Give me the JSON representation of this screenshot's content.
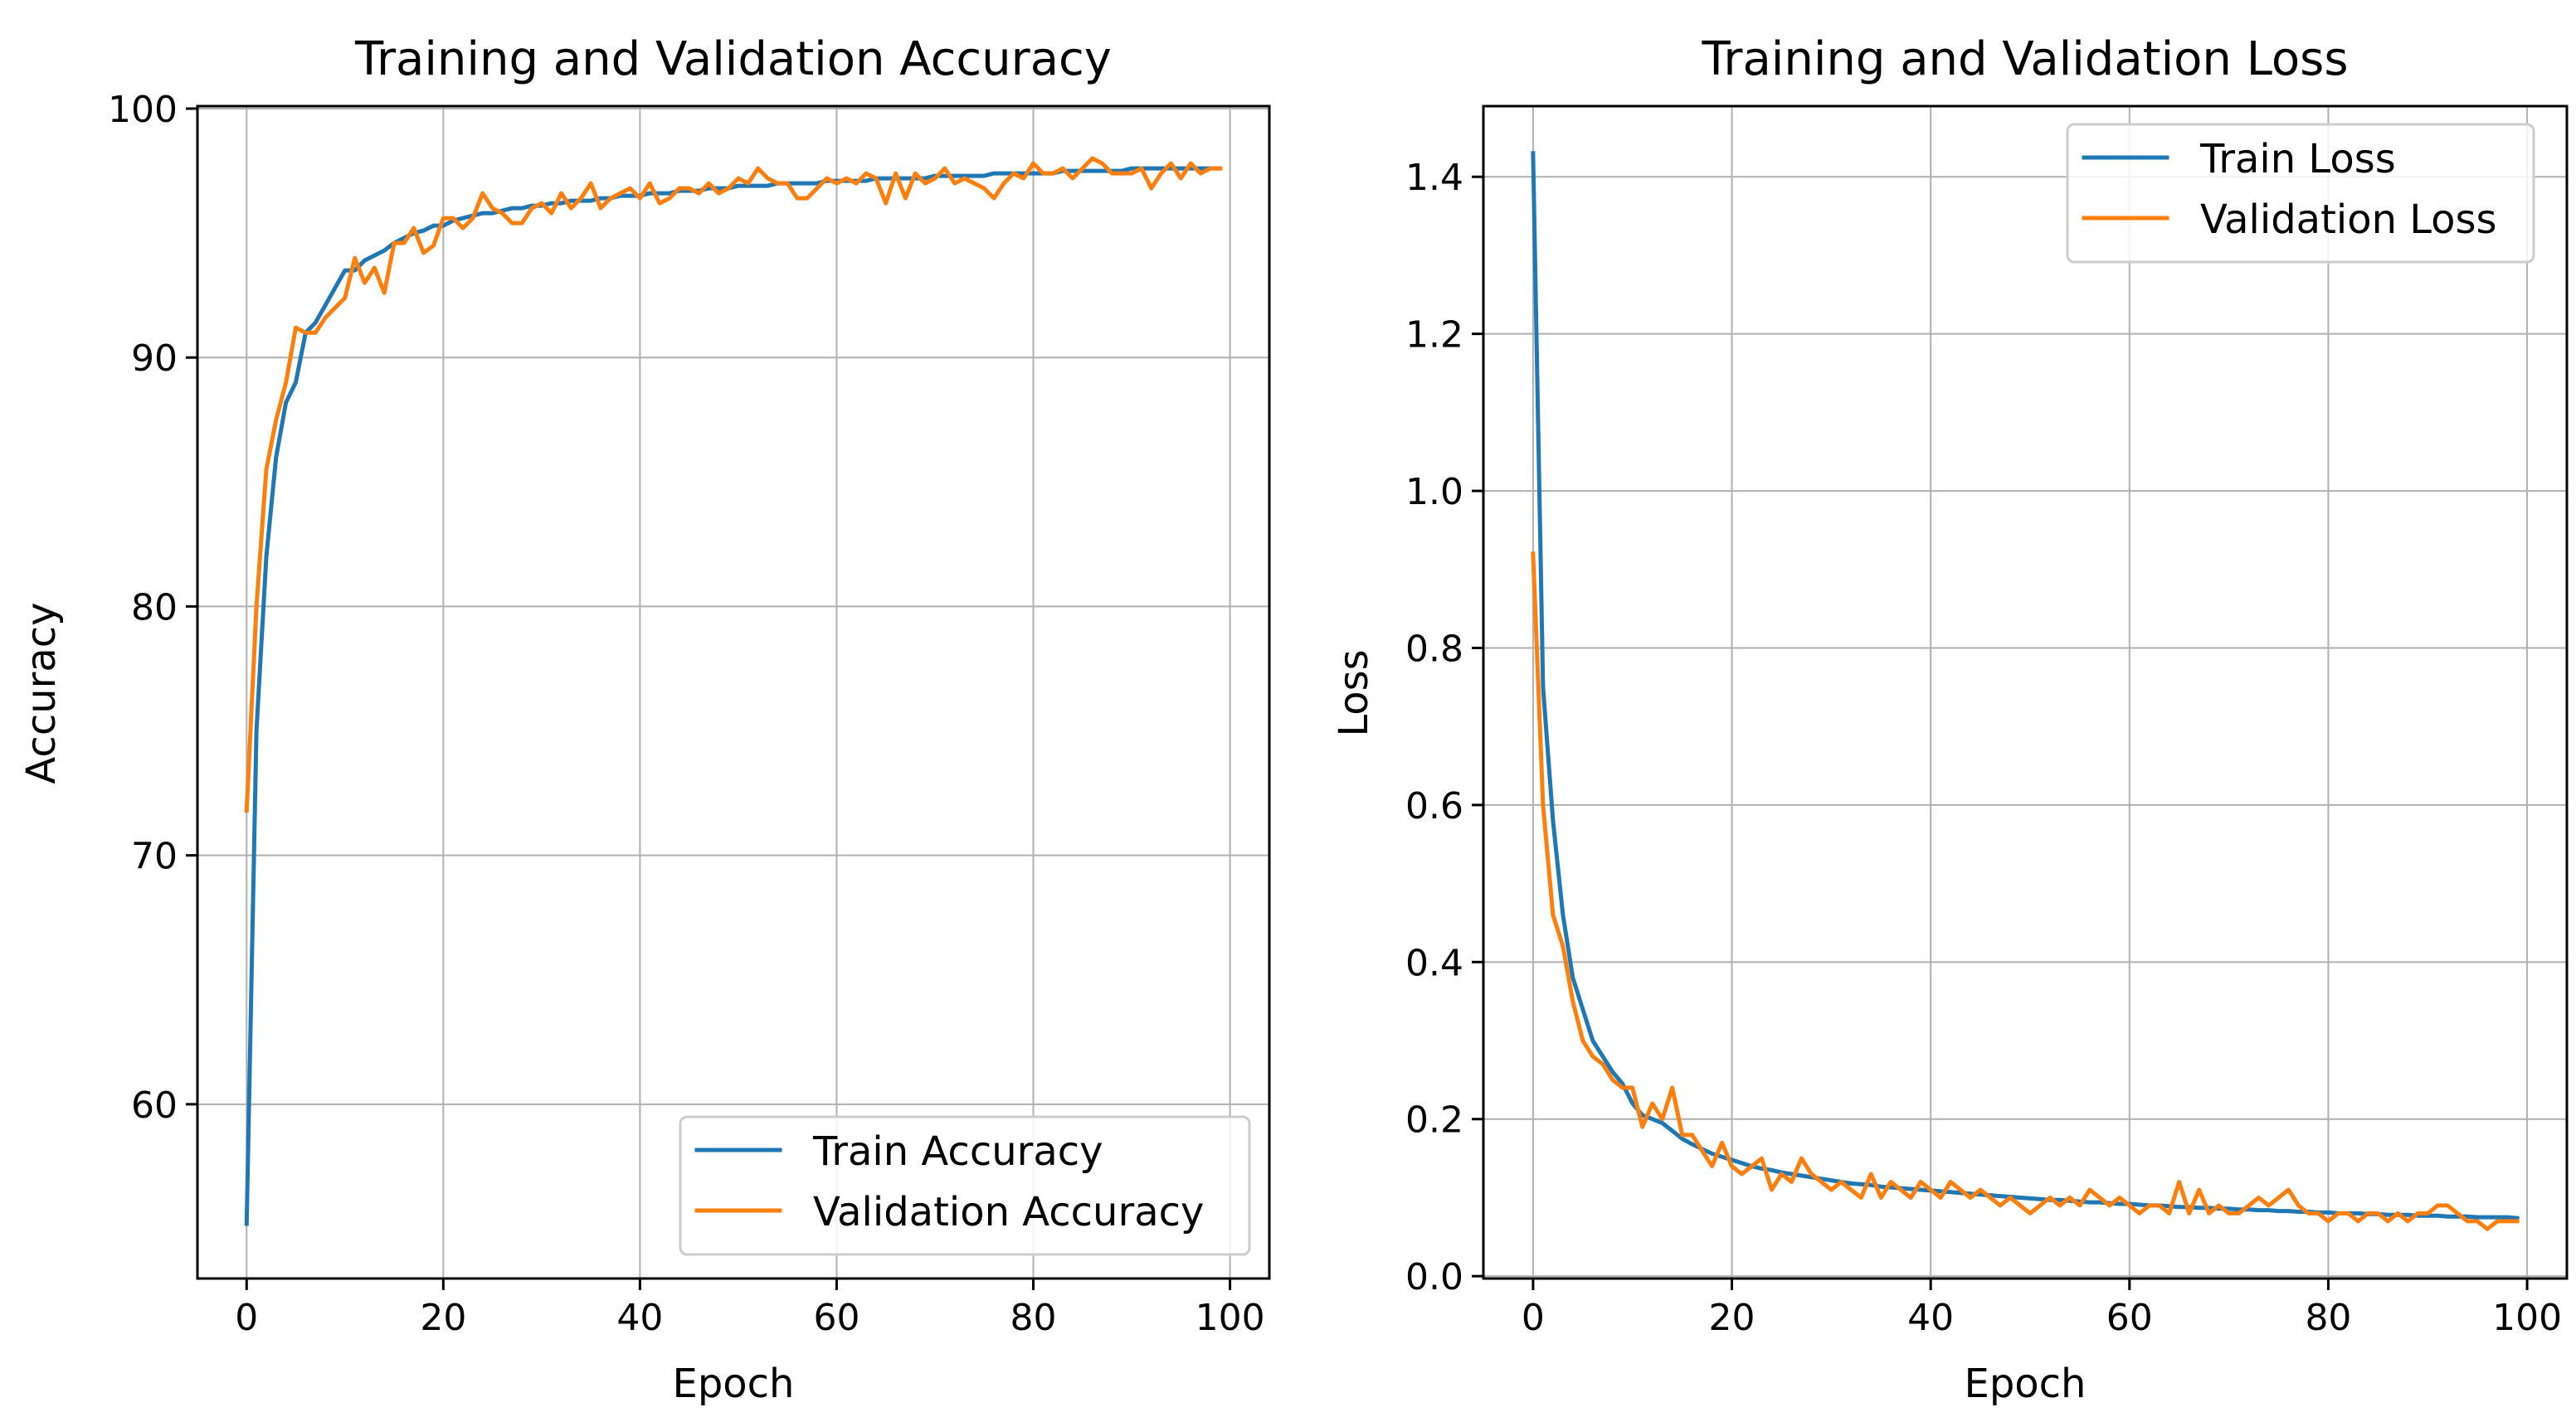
{
  "chart_data": [
    {
      "type": "line",
      "title": "Training and Validation Accuracy",
      "xlabel": "Epoch",
      "ylabel": "Accuracy",
      "xlim": [
        -5,
        104
      ],
      "ylim": [
        53,
        100.1
      ],
      "xticks": [
        0,
        20,
        40,
        60,
        80,
        100
      ],
      "yticks": [
        60,
        70,
        80,
        90,
        100
      ],
      "grid": true,
      "legend_position": "lower-right",
      "series": [
        {
          "name": "Train Accuracy",
          "color": "#1f77b4",
          "x": [
            0,
            1,
            2,
            3,
            4,
            5,
            6,
            7,
            8,
            9,
            10,
            11,
            12,
            13,
            14,
            15,
            16,
            17,
            18,
            19,
            20,
            21,
            22,
            23,
            24,
            25,
            26,
            27,
            28,
            29,
            30,
            31,
            32,
            33,
            34,
            35,
            36,
            37,
            38,
            39,
            40,
            41,
            42,
            43,
            44,
            45,
            46,
            47,
            48,
            49,
            50,
            51,
            52,
            53,
            54,
            55,
            56,
            57,
            58,
            59,
            60,
            61,
            62,
            63,
            64,
            65,
            66,
            67,
            68,
            69,
            70,
            71,
            72,
            73,
            74,
            75,
            76,
            77,
            78,
            79,
            80,
            81,
            82,
            83,
            84,
            85,
            86,
            87,
            88,
            89,
            90,
            91,
            92,
            93,
            94,
            95,
            96,
            97,
            98,
            99
          ],
          "values": [
            55.2,
            75.0,
            82.0,
            86.0,
            88.2,
            89.0,
            91.0,
            91.4,
            92.1,
            92.8,
            93.5,
            93.5,
            93.9,
            94.1,
            94.3,
            94.6,
            94.8,
            95.0,
            95.1,
            95.3,
            95.3,
            95.5,
            95.6,
            95.7,
            95.8,
            95.8,
            95.9,
            96.0,
            96.0,
            96.1,
            96.1,
            96.2,
            96.2,
            96.3,
            96.3,
            96.3,
            96.4,
            96.4,
            96.5,
            96.5,
            96.5,
            96.6,
            96.6,
            96.6,
            96.7,
            96.7,
            96.7,
            96.8,
            96.8,
            96.8,
            96.9,
            96.9,
            96.9,
            96.9,
            97.0,
            97.0,
            97.0,
            97.0,
            97.0,
            97.1,
            97.1,
            97.1,
            97.1,
            97.1,
            97.2,
            97.2,
            97.2,
            97.2,
            97.2,
            97.2,
            97.3,
            97.3,
            97.3,
            97.3,
            97.3,
            97.3,
            97.4,
            97.4,
            97.4,
            97.4,
            97.4,
            97.4,
            97.4,
            97.5,
            97.5,
            97.5,
            97.5,
            97.5,
            97.5,
            97.5,
            97.6,
            97.6,
            97.6,
            97.6,
            97.6,
            97.6,
            97.6,
            97.6,
            97.6,
            97.6
          ]
        },
        {
          "name": "Validation Accuracy",
          "color": "#ff7f0e",
          "x": [
            0,
            1,
            2,
            3,
            4,
            5,
            6,
            7,
            8,
            9,
            10,
            11,
            12,
            13,
            14,
            15,
            16,
            17,
            18,
            19,
            20,
            21,
            22,
            23,
            24,
            25,
            26,
            27,
            28,
            29,
            30,
            31,
            32,
            33,
            34,
            35,
            36,
            37,
            38,
            39,
            40,
            41,
            42,
            43,
            44,
            45,
            46,
            47,
            48,
            49,
            50,
            51,
            52,
            53,
            54,
            55,
            56,
            57,
            58,
            59,
            60,
            61,
            62,
            63,
            64,
            65,
            66,
            67,
            68,
            69,
            70,
            71,
            72,
            73,
            74,
            75,
            76,
            77,
            78,
            79,
            80,
            81,
            82,
            83,
            84,
            85,
            86,
            87,
            88,
            89,
            90,
            91,
            92,
            93,
            94,
            95,
            96,
            97,
            98,
            99
          ],
          "values": [
            71.8,
            80.0,
            85.5,
            87.5,
            89.0,
            91.2,
            91.0,
            91.0,
            91.6,
            92.0,
            92.4,
            94.0,
            93.0,
            93.6,
            92.6,
            94.6,
            94.6,
            95.2,
            94.2,
            94.5,
            95.6,
            95.6,
            95.2,
            95.6,
            96.6,
            96.0,
            95.8,
            95.4,
            95.4,
            96.0,
            96.2,
            95.8,
            96.6,
            96.0,
            96.4,
            97.0,
            96.0,
            96.4,
            96.6,
            96.8,
            96.4,
            97.0,
            96.2,
            96.4,
            96.8,
            96.8,
            96.6,
            97.0,
            96.6,
            96.8,
            97.2,
            97.0,
            97.6,
            97.2,
            97.0,
            97.0,
            96.4,
            96.4,
            96.8,
            97.2,
            97.0,
            97.2,
            97.0,
            97.4,
            97.2,
            96.2,
            97.4,
            96.4,
            97.4,
            97.0,
            97.2,
            97.6,
            97.0,
            97.2,
            97.0,
            96.8,
            96.4,
            97.0,
            97.4,
            97.2,
            97.8,
            97.4,
            97.4,
            97.6,
            97.2,
            97.6,
            98.0,
            97.8,
            97.4,
            97.4,
            97.4,
            97.6,
            96.8,
            97.4,
            97.8,
            97.2,
            97.8,
            97.4,
            97.6,
            97.6
          ]
        }
      ]
    },
    {
      "type": "line",
      "title": "Training and Validation Loss",
      "xlabel": "Epoch",
      "ylabel": "Loss",
      "xlim": [
        -5,
        104
      ],
      "ylim": [
        -0.003,
        1.49
      ],
      "xticks": [
        0,
        20,
        40,
        60,
        80,
        100
      ],
      "yticks": [
        0.0,
        0.2,
        0.4,
        0.6,
        0.8,
        1.0,
        1.2,
        1.4
      ],
      "ytick_labels": [
        "0.0",
        "0.2",
        "0.4",
        "0.6",
        "0.8",
        "1.0",
        "1.2",
        "1.4"
      ],
      "grid": true,
      "legend_position": "upper-right",
      "series": [
        {
          "name": "Train Loss",
          "color": "#1f77b4",
          "x": [
            0,
            1,
            2,
            3,
            4,
            5,
            6,
            7,
            8,
            9,
            10,
            11,
            12,
            13,
            14,
            15,
            16,
            17,
            18,
            19,
            20,
            21,
            22,
            23,
            24,
            25,
            26,
            27,
            28,
            29,
            30,
            31,
            32,
            33,
            34,
            35,
            36,
            37,
            38,
            39,
            40,
            41,
            42,
            43,
            44,
            45,
            46,
            47,
            48,
            49,
            50,
            51,
            52,
            53,
            54,
            55,
            56,
            57,
            58,
            59,
            60,
            61,
            62,
            63,
            64,
            65,
            66,
            67,
            68,
            69,
            70,
            71,
            72,
            73,
            74,
            75,
            76,
            77,
            78,
            79,
            80,
            81,
            82,
            83,
            84,
            85,
            86,
            87,
            88,
            89,
            90,
            91,
            92,
            93,
            94,
            95,
            96,
            97,
            98,
            99
          ],
          "values": [
            1.43,
            0.75,
            0.58,
            0.46,
            0.38,
            0.34,
            0.3,
            0.28,
            0.26,
            0.245,
            0.22,
            0.205,
            0.2,
            0.195,
            0.185,
            0.175,
            0.168,
            0.162,
            0.156,
            0.152,
            0.148,
            0.144,
            0.14,
            0.137,
            0.135,
            0.132,
            0.13,
            0.128,
            0.126,
            0.124,
            0.122,
            0.12,
            0.118,
            0.117,
            0.116,
            0.114,
            0.113,
            0.112,
            0.111,
            0.11,
            0.109,
            0.108,
            0.107,
            0.106,
            0.105,
            0.104,
            0.103,
            0.102,
            0.101,
            0.1,
            0.099,
            0.098,
            0.097,
            0.097,
            0.096,
            0.095,
            0.094,
            0.094,
            0.093,
            0.092,
            0.092,
            0.091,
            0.09,
            0.09,
            0.089,
            0.088,
            0.088,
            0.087,
            0.087,
            0.086,
            0.086,
            0.085,
            0.085,
            0.084,
            0.084,
            0.083,
            0.083,
            0.082,
            0.082,
            0.081,
            0.081,
            0.08,
            0.08,
            0.08,
            0.079,
            0.079,
            0.078,
            0.078,
            0.078,
            0.077,
            0.077,
            0.077,
            0.076,
            0.076,
            0.076,
            0.075,
            0.075,
            0.075,
            0.075,
            0.074
          ]
        },
        {
          "name": "Validation Loss",
          "color": "#ff7f0e",
          "x": [
            0,
            1,
            2,
            3,
            4,
            5,
            6,
            7,
            8,
            9,
            10,
            11,
            12,
            13,
            14,
            15,
            16,
            17,
            18,
            19,
            20,
            21,
            22,
            23,
            24,
            25,
            26,
            27,
            28,
            29,
            30,
            31,
            32,
            33,
            34,
            35,
            36,
            37,
            38,
            39,
            40,
            41,
            42,
            43,
            44,
            45,
            46,
            47,
            48,
            49,
            50,
            51,
            52,
            53,
            54,
            55,
            56,
            57,
            58,
            59,
            60,
            61,
            62,
            63,
            64,
            65,
            66,
            67,
            68,
            69,
            70,
            71,
            72,
            73,
            74,
            75,
            76,
            77,
            78,
            79,
            80,
            81,
            82,
            83,
            84,
            85,
            86,
            87,
            88,
            89,
            90,
            91,
            92,
            93,
            94,
            95,
            96,
            97,
            98,
            99
          ],
          "values": [
            0.92,
            0.6,
            0.46,
            0.42,
            0.35,
            0.3,
            0.28,
            0.27,
            0.25,
            0.24,
            0.24,
            0.19,
            0.22,
            0.2,
            0.24,
            0.18,
            0.18,
            0.16,
            0.14,
            0.17,
            0.14,
            0.13,
            0.14,
            0.15,
            0.11,
            0.13,
            0.12,
            0.15,
            0.13,
            0.12,
            0.11,
            0.12,
            0.11,
            0.1,
            0.13,
            0.1,
            0.12,
            0.11,
            0.1,
            0.12,
            0.11,
            0.1,
            0.12,
            0.11,
            0.1,
            0.11,
            0.1,
            0.09,
            0.1,
            0.09,
            0.08,
            0.09,
            0.1,
            0.09,
            0.1,
            0.09,
            0.11,
            0.1,
            0.09,
            0.1,
            0.09,
            0.08,
            0.09,
            0.09,
            0.08,
            0.12,
            0.08,
            0.11,
            0.08,
            0.09,
            0.08,
            0.08,
            0.09,
            0.1,
            0.09,
            0.1,
            0.11,
            0.09,
            0.08,
            0.08,
            0.07,
            0.08,
            0.08,
            0.07,
            0.08,
            0.08,
            0.07,
            0.08,
            0.07,
            0.08,
            0.08,
            0.09,
            0.09,
            0.08,
            0.07,
            0.07,
            0.06,
            0.07,
            0.07,
            0.07
          ]
        }
      ]
    }
  ]
}
